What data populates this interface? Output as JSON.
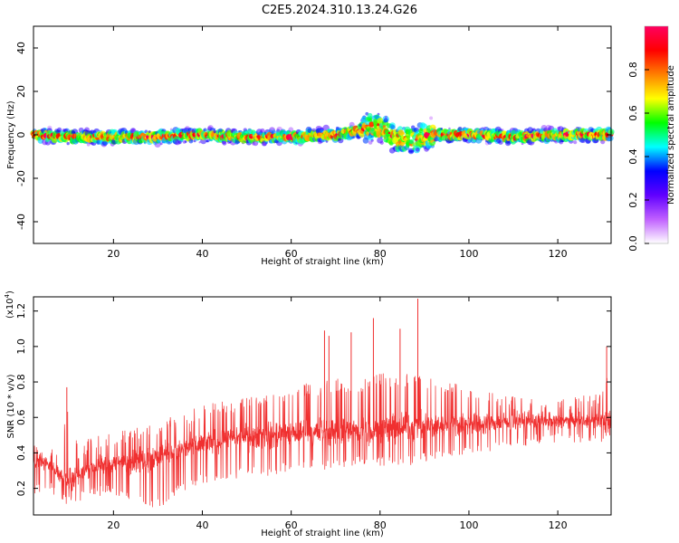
{
  "title": "C2E5.2024.310.13.24.G26",
  "chart_data": [
    {
      "type": "heatmap",
      "xlabel": "Height of straight line (km)",
      "ylabel": "Frequency (Hz)",
      "xlim": [
        2,
        132
      ],
      "ylim": [
        -50,
        50
      ],
      "xticks": [
        20,
        40,
        60,
        80,
        100,
        120
      ],
      "yticks": [
        -40,
        -20,
        0,
        20,
        40
      ],
      "ytick_labels": [
        "-40",
        "-20",
        "0",
        "20",
        "40"
      ],
      "colorbar": {
        "label": "Normalized spectral amplitude",
        "range": [
          0,
          1
        ],
        "ticks": [
          0.0,
          0.2,
          0.4,
          0.6,
          0.8
        ],
        "tick_labels": [
          "0.0",
          "0.2",
          "0.4",
          "0.6",
          "0.8"
        ],
        "colors": [
          "#ffffff",
          "#c060ff",
          "#6000ff",
          "#0000ff",
          "#00ffff",
          "#00ff00",
          "#ffff00",
          "#ff8000",
          "#ff0000",
          "#ff0060"
        ]
      },
      "ridge": {
        "description": "Concentrated spectral amplitude along frequency near 0 Hz with spread at about 78-90 km",
        "center_hz": [
          [
            2,
            0
          ],
          [
            10,
            -1
          ],
          [
            20,
            -1
          ],
          [
            30,
            -1
          ],
          [
            40,
            0
          ],
          [
            50,
            -1
          ],
          [
            60,
            -1
          ],
          [
            70,
            0
          ],
          [
            75,
            2
          ],
          [
            78,
            4
          ],
          [
            80,
            3
          ],
          [
            84,
            -2
          ],
          [
            88,
            -2
          ],
          [
            92,
            0
          ],
          [
            100,
            0
          ],
          [
            110,
            -1
          ],
          [
            120,
            0
          ],
          [
            132,
            0
          ]
        ]
      }
    },
    {
      "type": "line",
      "xlabel": "Height of straight line (km)",
      "ylabel": "SNR (10 * v/v)",
      "multiplier_label": "(x10",
      "multiplier_exponent": "4",
      "multiplier_close": ")",
      "xlim": [
        2,
        132
      ],
      "ylim": [
        0.05,
        1.28
      ],
      "xticks": [
        20,
        40,
        60,
        80,
        100,
        120
      ],
      "yticks": [
        0.2,
        0.4,
        0.6,
        0.8,
        1.0,
        1.2
      ],
      "ytick_labels": [
        "0.2",
        "0.4",
        "0.6",
        "0.8",
        "1.0",
        "1.2"
      ],
      "color": "#f03030",
      "envelope": {
        "x": [
          2,
          5,
          8,
          10,
          12,
          15,
          20,
          25,
          30,
          35,
          40,
          45,
          50,
          55,
          60,
          65,
          70,
          75,
          80,
          85,
          90,
          95,
          100,
          105,
          110,
          115,
          120,
          125,
          130,
          132
        ],
        "mean": [
          0.36,
          0.35,
          0.28,
          0.25,
          0.27,
          0.32,
          0.34,
          0.36,
          0.38,
          0.42,
          0.45,
          0.47,
          0.49,
          0.5,
          0.51,
          0.52,
          0.52,
          0.53,
          0.53,
          0.54,
          0.55,
          0.56,
          0.57,
          0.57,
          0.58,
          0.58,
          0.58,
          0.58,
          0.58,
          0.58
        ],
        "high": [
          0.44,
          0.45,
          0.4,
          0.76,
          0.42,
          0.5,
          0.52,
          0.55,
          0.58,
          0.62,
          0.67,
          0.7,
          0.72,
          0.75,
          0.78,
          0.8,
          0.82,
          0.82,
          0.85,
          0.85,
          0.85,
          0.8,
          0.78,
          0.75,
          0.72,
          0.7,
          0.7,
          0.72,
          0.75,
          1.0
        ],
        "low": [
          0.15,
          0.2,
          0.12,
          0.1,
          0.12,
          0.15,
          0.16,
          0.1,
          0.08,
          0.18,
          0.22,
          0.25,
          0.26,
          0.27,
          0.3,
          0.3,
          0.3,
          0.32,
          0.32,
          0.32,
          0.34,
          0.36,
          0.38,
          0.4,
          0.42,
          0.45,
          0.45,
          0.45,
          0.45,
          0.45
        ]
      },
      "spikes": [
        {
          "x": 9.5,
          "y": 0.77
        },
        {
          "x": 67.5,
          "y": 1.09
        },
        {
          "x": 68.5,
          "y": 1.06
        },
        {
          "x": 73.5,
          "y": 1.08
        },
        {
          "x": 78.5,
          "y": 1.16
        },
        {
          "x": 84.5,
          "y": 1.1
        },
        {
          "x": 88.5,
          "y": 1.27
        },
        {
          "x": 131,
          "y": 1.0
        }
      ]
    }
  ]
}
